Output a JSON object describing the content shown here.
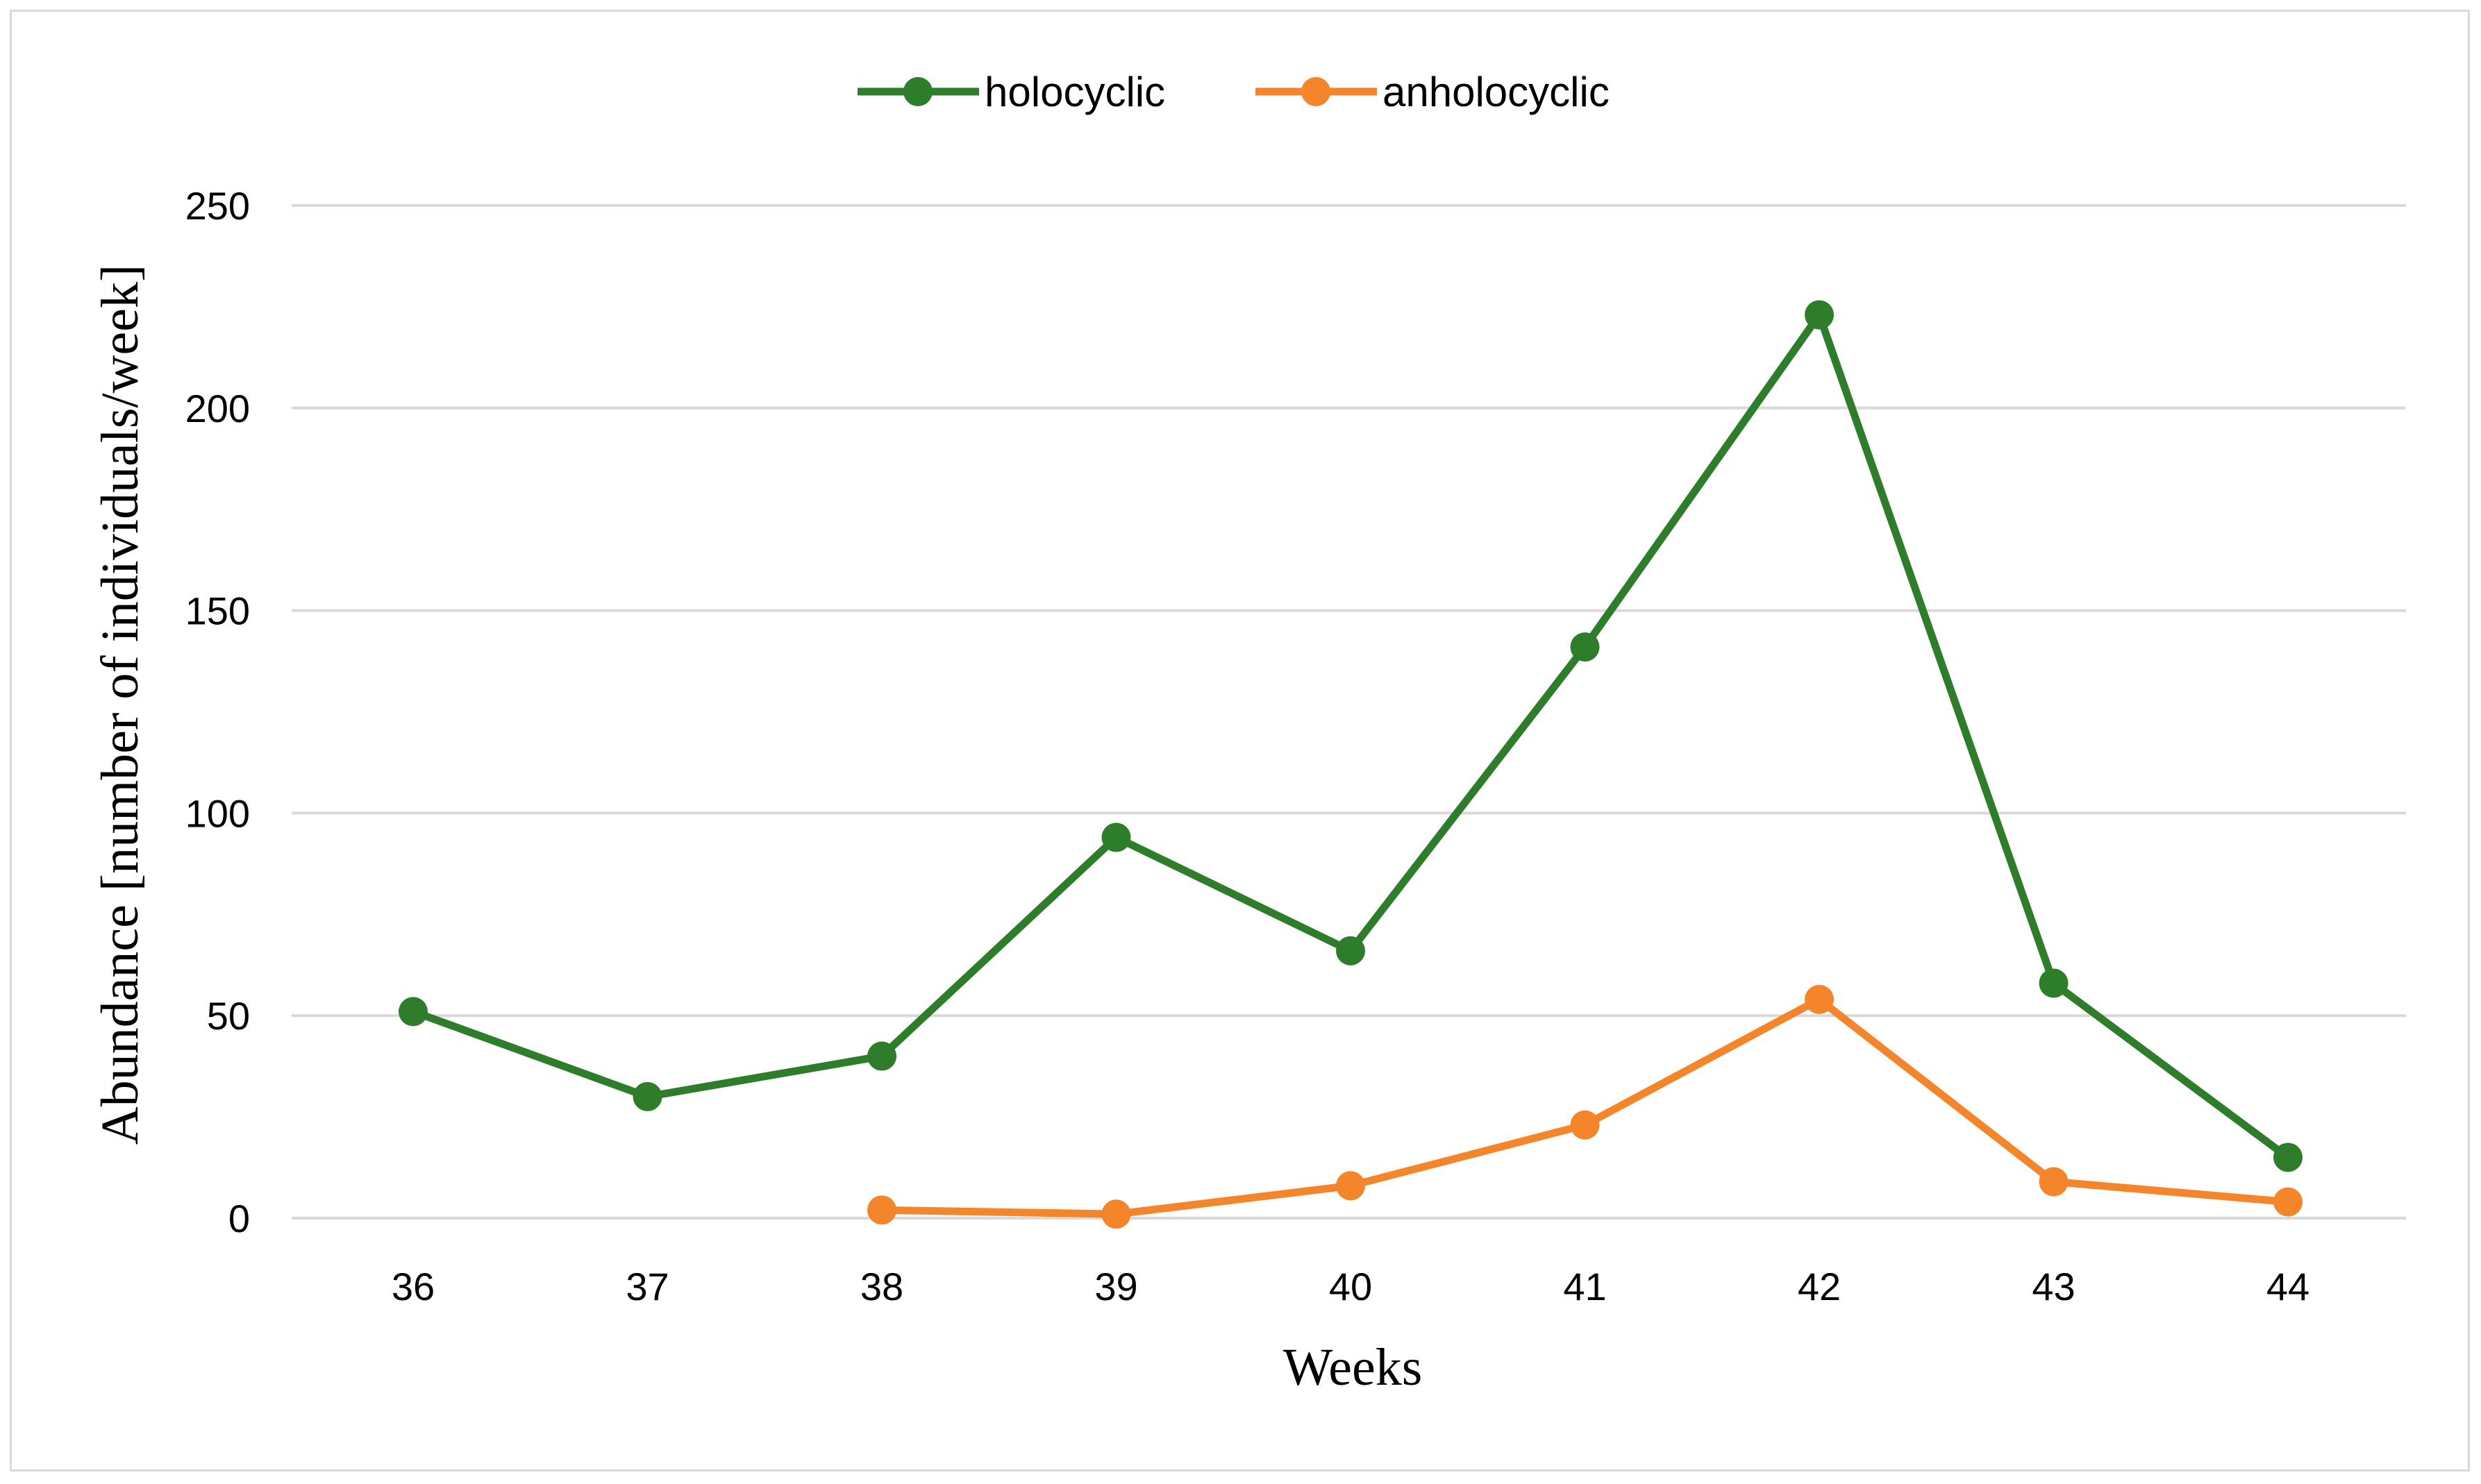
{
  "chart_data": {
    "type": "line",
    "title": "",
    "xlabel": "Weeks",
    "ylabel": "Abundance [number of individuals/week]",
    "categories": [
      "36",
      "37",
      "38",
      "39",
      "40",
      "41",
      "42",
      "43",
      "44"
    ],
    "ylim": [
      0,
      250
    ],
    "yticks": [
      "0",
      "50",
      "100",
      "150",
      "200",
      "250"
    ],
    "grid": true,
    "legend_position": "top-center",
    "series": [
      {
        "name": "holocyclic",
        "color": "#2e7d2a",
        "values": [
          51,
          30,
          40,
          94,
          66,
          141,
          223,
          58,
          15
        ]
      },
      {
        "name": "anholocyclic",
        "color": "#f5852a",
        "values": [
          null,
          null,
          2,
          1,
          8,
          23,
          54,
          9,
          4
        ]
      }
    ]
  }
}
